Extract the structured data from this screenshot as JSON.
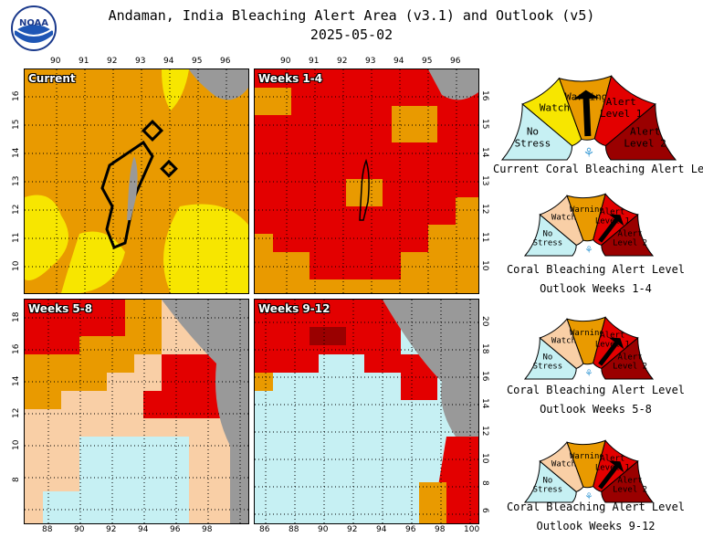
{
  "header": {
    "title": "Andaman, India Bleaching Alert Area (v3.1) and Outlook (v5)",
    "date": "2025-05-02",
    "logo_text": "NOAA"
  },
  "colors": {
    "no_stress": "#c6f0f3",
    "watch": "#f7e600",
    "watch_outlook": "#f9cfa6",
    "warning": "#e99a00",
    "alert1": "#e30000",
    "alert2": "#9a0000",
    "land": "#999999",
    "grid": "#000000"
  },
  "panels": [
    {
      "label": "Current",
      "top_ticks": [
        "90",
        "91",
        "92",
        "93",
        "94",
        "95",
        "96"
      ],
      "left_ticks": [
        "16",
        "15",
        "14",
        "13",
        "12",
        "11",
        "10"
      ]
    },
    {
      "label": "Weeks 1-4",
      "top_ticks": [
        "90",
        "91",
        "92",
        "93",
        "94",
        "95",
        "96"
      ],
      "right_ticks": [
        "16",
        "15",
        "14",
        "13",
        "12",
        "11",
        "10"
      ]
    },
    {
      "label": "Weeks 5-8",
      "bottom_ticks": [
        "88",
        "90",
        "92",
        "94",
        "96",
        "98"
      ],
      "left_ticks": [
        "18",
        "16",
        "14",
        "12",
        "10",
        "8"
      ]
    },
    {
      "label": "Weeks 9-12",
      "bottom_ticks": [
        "86",
        "88",
        "90",
        "92",
        "94",
        "96",
        "98",
        "100"
      ],
      "right_ticks": [
        "20",
        "18",
        "16",
        "14",
        "12",
        "10",
        "8",
        "6"
      ]
    }
  ],
  "gauges": [
    {
      "caption_lines": [
        "Current Coral Bleaching Alert Level"
      ],
      "levels": [
        "No Stress",
        "Watch",
        "Warning",
        "Alert Level 1",
        "Alert Level 2"
      ],
      "current_level": "Warning"
    },
    {
      "caption_lines": [
        "Coral Bleaching Alert Level",
        "Outlook Weeks 1-4"
      ],
      "levels": [
        "No Stress",
        "Watch",
        "Warning",
        "Alert Level 1",
        "Alert Level 2"
      ],
      "current_level": "Alert Level 1"
    },
    {
      "caption_lines": [
        "Coral Bleaching Alert Level",
        "Outlook Weeks 5-8"
      ],
      "levels": [
        "No Stress",
        "Watch",
        "Warning",
        "Alert Level 1",
        "Alert Level 2"
      ],
      "current_level": "Alert Level 1"
    },
    {
      "caption_lines": [
        "Coral Bleaching Alert Level",
        "Outlook Weeks 9-12"
      ],
      "levels": [
        "No Stress",
        "Watch",
        "Warning",
        "Alert Level 1",
        "Alert Level 2"
      ],
      "current_level": "Alert Level 1"
    }
  ]
}
